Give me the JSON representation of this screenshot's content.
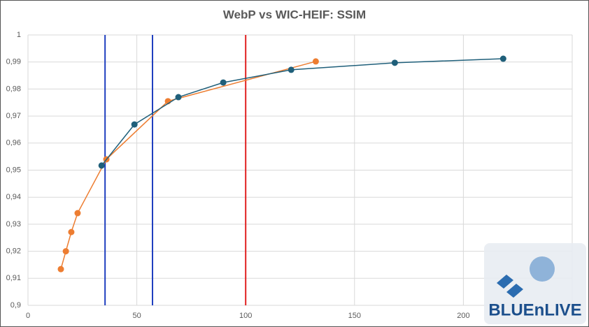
{
  "chart_data": {
    "type": "scatter-line",
    "title": "WebP vs WIC-HEIF: SSIM",
    "xlim": [
      0,
      250
    ],
    "xticks": [
      0,
      50,
      100,
      150,
      200
    ],
    "ylim": [
      0.9,
      1
    ],
    "yticks": [
      {
        "value": 0.9,
        "label": "0,9"
      },
      {
        "value": 0.91,
        "label": "0,91"
      },
      {
        "value": 0.92,
        "label": "0,92"
      },
      {
        "value": 0.93,
        "label": "0,93"
      },
      {
        "value": 0.94,
        "label": "0,94"
      },
      {
        "value": 0.95,
        "label": "0,95"
      },
      {
        "value": 0.96,
        "label": "0,96"
      },
      {
        "value": 0.97,
        "label": "0,97"
      },
      {
        "value": 0.98,
        "label": "0,98"
      },
      {
        "value": 0.99,
        "label": "0,99"
      },
      1
    ],
    "grid": true,
    "series": [
      {
        "color": "#ed7d31",
        "x": [
          15.1,
          17.4,
          19.9,
          22.8,
          36.0,
          64.3,
          132.2
        ],
        "values": [
          0.9134,
          0.92,
          0.9271,
          0.9341,
          0.954,
          0.9755,
          0.9902
        ]
      },
      {
        "color": "#1f5f7a",
        "x": [
          33.8,
          48.9,
          69.1,
          89.7,
          120.9,
          168.5,
          218.3
        ],
        "values": [
          0.9517,
          0.9669,
          0.977,
          0.9824,
          0.9871,
          0.9897,
          0.9912
        ]
      }
    ],
    "vertical_lines": [
      {
        "x": 35.4,
        "color": "#1f3fbf"
      },
      {
        "x": 57.2,
        "color": "#1f3fbf"
      },
      {
        "x": 100,
        "color": "#e02020"
      }
    ],
    "watermark": "BLUEnLIVE"
  }
}
